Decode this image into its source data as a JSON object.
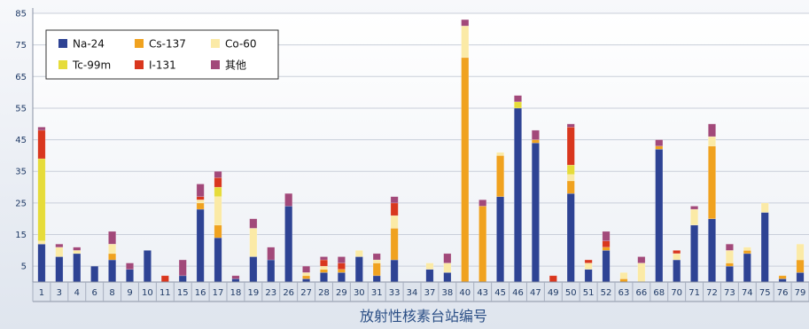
{
  "chart_data": {
    "type": "bar",
    "stacked": true,
    "xlabel": "放射性核素台站编号",
    "ylabel": "",
    "ylim": [
      0,
      85
    ],
    "yticks": [
      5,
      15,
      25,
      35,
      45,
      55,
      65,
      75,
      85
    ],
    "grid": true,
    "legend_position": "top-left",
    "categories": [
      "1",
      "3",
      "4",
      "6",
      "8",
      "9",
      "10",
      "11",
      "15",
      "16",
      "17",
      "18",
      "19",
      "23",
      "26",
      "27",
      "28",
      "29",
      "30",
      "31",
      "33",
      "34",
      "37",
      "38",
      "40",
      "43",
      "45",
      "46",
      "47",
      "49",
      "50",
      "51",
      "52",
      "63",
      "66",
      "68",
      "70",
      "71",
      "72",
      "73",
      "74",
      "75",
      "76",
      "79"
    ],
    "series": [
      {
        "name": "Na-24",
        "color": "#2e4394",
        "values": [
          12,
          8,
          9,
          5,
          7,
          4,
          10,
          0,
          2,
          23,
          14,
          1,
          8,
          7,
          24,
          1,
          3,
          3,
          8,
          2,
          7,
          0,
          4,
          3,
          0,
          0,
          27,
          55,
          44,
          0,
          28,
          4,
          10,
          0,
          0,
          42,
          7,
          18,
          20,
          5,
          9,
          22,
          1,
          3
        ]
      },
      {
        "name": "Cs-137",
        "color": "#f0a21f",
        "values": [
          0,
          0,
          0,
          0,
          2,
          0,
          0,
          0,
          0,
          2,
          4,
          0,
          0,
          0,
          0,
          1,
          1,
          1,
          0,
          4,
          10,
          0,
          0,
          0,
          71,
          24,
          13,
          0,
          1,
          0,
          4,
          0,
          1,
          1,
          0,
          1,
          0,
          0,
          23,
          1,
          1,
          0,
          1,
          4
        ]
      },
      {
        "name": "Co-60",
        "color": "#fbeaa6",
        "values": [
          1,
          3,
          1,
          0,
          3,
          0,
          0,
          0,
          0,
          1,
          9,
          0,
          9,
          0,
          0,
          1,
          1,
          0,
          2,
          1,
          4,
          0,
          2,
          3,
          10,
          0,
          1,
          0,
          0,
          0,
          2,
          2,
          0,
          2,
          6,
          0,
          2,
          5,
          3,
          4,
          1,
          3,
          0,
          5
        ]
      },
      {
        "name": "Tc-99m",
        "color": "#e6dc3a",
        "values": [
          26,
          0,
          0,
          0,
          0,
          0,
          0,
          0,
          0,
          0,
          3,
          0,
          0,
          0,
          0,
          0,
          0,
          0,
          0,
          0,
          0,
          0,
          0,
          0,
          0,
          0,
          0,
          2,
          0,
          0,
          3,
          0,
          0,
          0,
          0,
          0,
          0,
          0,
          0,
          0,
          0,
          0,
          0,
          0
        ]
      },
      {
        "name": "I-131",
        "color": "#d9371e",
        "values": [
          9,
          0,
          0,
          0,
          0,
          0,
          0,
          2,
          0,
          1,
          3,
          0,
          0,
          0,
          0,
          0,
          2,
          2,
          0,
          0,
          4,
          0,
          0,
          0,
          0,
          0,
          0,
          0,
          0,
          2,
          12,
          1,
          2,
          0,
          0,
          0,
          1,
          0,
          0,
          0,
          0,
          0,
          0,
          0
        ]
      },
      {
        "name": "其他",
        "color": "#a2497a",
        "values": [
          1,
          1,
          1,
          0,
          4,
          2,
          0,
          0,
          5,
          4,
          2,
          1,
          3,
          4,
          4,
          2,
          1,
          2,
          0,
          2,
          2,
          0,
          0,
          3,
          2,
          2,
          0,
          2,
          3,
          0,
          1,
          0,
          3,
          0,
          2,
          2,
          0,
          1,
          4,
          2,
          0,
          0,
          0,
          0
        ]
      }
    ]
  }
}
